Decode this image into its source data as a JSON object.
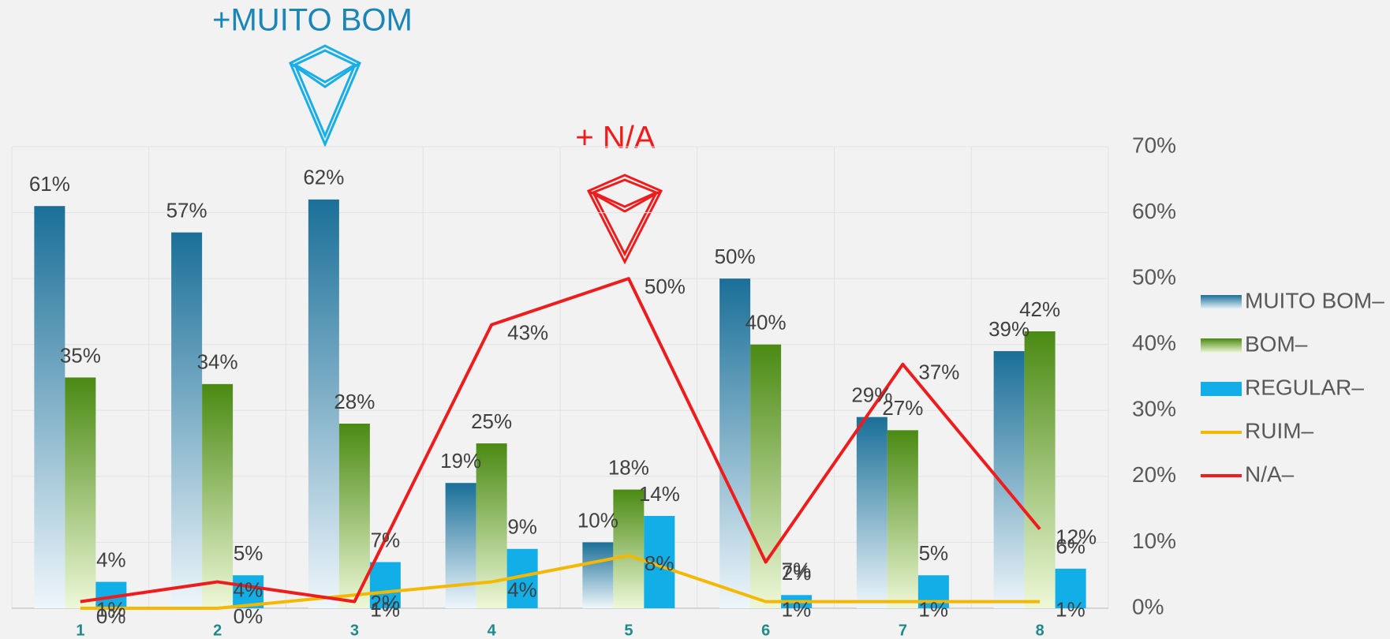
{
  "chart_data": {
    "type": "bar",
    "categories": [
      "1",
      "2",
      "3",
      "4",
      "5",
      "6",
      "7",
      "8"
    ],
    "series": [
      {
        "name": "MUITO BOM–",
        "type": "bar",
        "color": "#1a6f98",
        "color_end": "#eef6fb",
        "values": [
          61,
          57,
          62,
          19,
          10,
          50,
          29,
          39
        ],
        "value_labels": [
          "61%",
          "57%",
          "62%",
          "19%",
          "10%",
          "50%",
          "29%",
          "39%"
        ]
      },
      {
        "name": "BOM–",
        "type": "bar",
        "color": "#4a8a12",
        "color_end": "#eef8d8",
        "values": [
          35,
          34,
          28,
          25,
          18,
          40,
          27,
          42
        ],
        "value_labels": [
          "35%",
          "34%",
          "28%",
          "25%",
          "18%",
          "40%",
          "27%",
          "42%"
        ]
      },
      {
        "name": "REGULAR–",
        "type": "bar",
        "color": "#12aee8",
        "values": [
          4,
          5,
          7,
          9,
          14,
          2,
          5,
          6
        ],
        "value_labels": [
          "4%",
          "5%",
          "7%",
          "9%",
          "14%",
          "2%",
          "5%",
          "6%"
        ]
      },
      {
        "name": "RUIM–",
        "type": "line",
        "color": "#f5b800",
        "values": [
          0,
          0,
          2,
          4,
          8,
          1,
          1,
          1
        ],
        "value_labels": [
          "0%",
          "0%",
          "2%",
          "4%",
          "8%",
          "1%",
          "1%",
          "1%"
        ]
      },
      {
        "name": "N/A–",
        "type": "line",
        "color": "#ee1c1c",
        "values": [
          1,
          4,
          1,
          43,
          50,
          7,
          37,
          12
        ],
        "value_labels": [
          "1%",
          "4%",
          "1%",
          "43%",
          "50%",
          "7%",
          "37%",
          "12%"
        ]
      }
    ],
    "annotations": [
      "+MUITO BOM",
      "+ N/A"
    ],
    "ylim": [
      0,
      70
    ],
    "yticks": [
      {
        "value": 0,
        "label": "0%"
      },
      {
        "value": 10,
        "label": "10%"
      },
      {
        "value": 20,
        "label": "20%"
      },
      {
        "value": 30,
        "label": "30%"
      },
      {
        "value": 40,
        "label": "40%"
      },
      {
        "value": 50,
        "label": "50%"
      },
      {
        "value": 60,
        "label": "60%"
      },
      {
        "value": 70,
        "label": "70%"
      }
    ],
    "grid": true,
    "legend": "right"
  }
}
